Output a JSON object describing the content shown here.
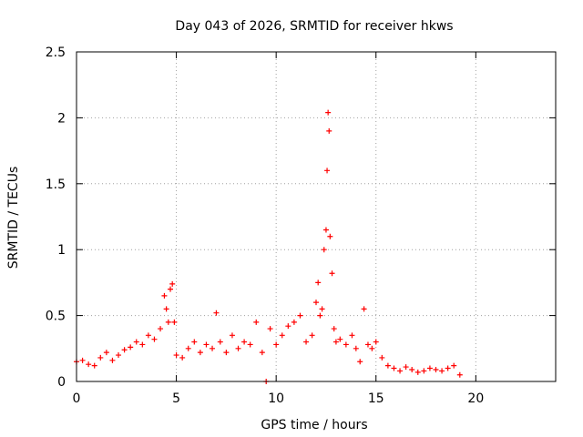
{
  "chart_data": {
    "type": "scatter",
    "title": "Day 043 of 2026, SRMTID for receiver hkws",
    "xlabel": "GPS time / hours",
    "ylabel": "SRMTID / TECUs",
    "xlim": [
      0,
      24
    ],
    "ylim": [
      0,
      2.5
    ],
    "xticks": [
      0,
      5,
      10,
      15,
      20
    ],
    "yticks": [
      0,
      0.5,
      1,
      1.5,
      2,
      2.5
    ],
    "xtick_labels": [
      "0",
      "5",
      "10",
      "15",
      "20"
    ],
    "ytick_labels": [
      "0",
      "0.5",
      "1",
      "1.5",
      "2",
      "2.5"
    ],
    "grid": true,
    "marker": "+",
    "series": [
      {
        "name": "SRMTID",
        "color": "#ff0000",
        "x": [
          0.0,
          0.3,
          0.6,
          0.9,
          1.2,
          1.5,
          1.8,
          2.1,
          2.4,
          2.7,
          3.0,
          3.3,
          3.6,
          3.9,
          4.2,
          4.4,
          4.5,
          4.6,
          4.7,
          4.8,
          4.9,
          5.0,
          5.3,
          5.6,
          5.9,
          6.2,
          6.5,
          6.8,
          7.0,
          7.2,
          7.5,
          7.8,
          8.1,
          8.4,
          8.7,
          9.0,
          9.3,
          9.5,
          9.7,
          10.0,
          10.3,
          10.6,
          10.9,
          11.2,
          11.5,
          11.8,
          12.0,
          12.1,
          12.2,
          12.3,
          12.4,
          12.5,
          12.55,
          12.6,
          12.65,
          12.7,
          12.8,
          12.9,
          13.0,
          13.2,
          13.5,
          13.8,
          14.0,
          14.2,
          14.4,
          14.6,
          14.8,
          15.0,
          15.3,
          15.6,
          15.9,
          16.2,
          16.5,
          16.8,
          17.1,
          17.4,
          17.7,
          18.0,
          18.3,
          18.6,
          18.9,
          19.2
        ],
        "values": [
          0.15,
          0.16,
          0.13,
          0.12,
          0.18,
          0.22,
          0.16,
          0.2,
          0.24,
          0.26,
          0.3,
          0.28,
          0.35,
          0.32,
          0.4,
          0.65,
          0.55,
          0.45,
          0.7,
          0.74,
          0.45,
          0.2,
          0.18,
          0.25,
          0.3,
          0.22,
          0.28,
          0.25,
          0.52,
          0.3,
          0.22,
          0.35,
          0.25,
          0.3,
          0.28,
          0.45,
          0.22,
          0.0,
          0.4,
          0.28,
          0.35,
          0.42,
          0.45,
          0.5,
          0.3,
          0.35,
          0.6,
          0.75,
          0.5,
          0.55,
          1.0,
          1.15,
          1.6,
          2.04,
          1.9,
          1.1,
          0.82,
          0.4,
          0.3,
          0.32,
          0.28,
          0.35,
          0.25,
          0.15,
          0.55,
          0.28,
          0.25,
          0.3,
          0.18,
          0.12,
          0.1,
          0.08,
          0.11,
          0.09,
          0.07,
          0.08,
          0.1,
          0.09,
          0.08,
          0.1,
          0.12,
          0.05
        ]
      }
    ]
  }
}
